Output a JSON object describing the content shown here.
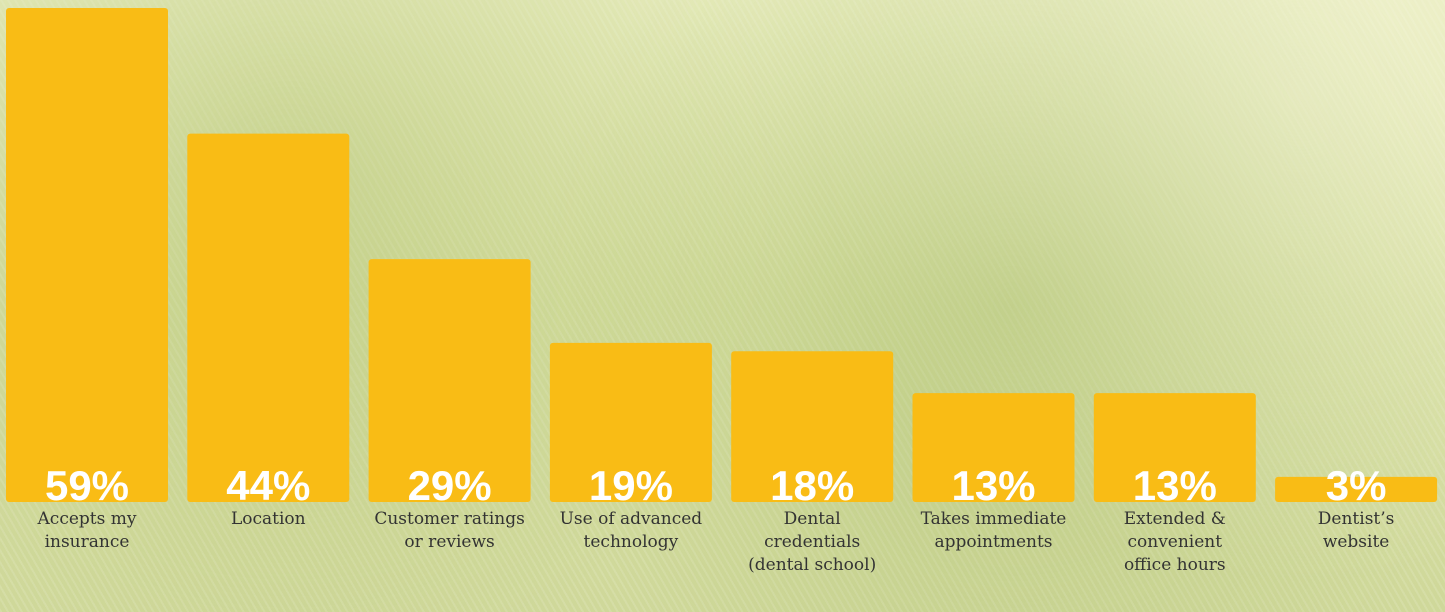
{
  "chart_data": {
    "type": "bar",
    "categories": [
      "Accepts my\ninsurance",
      "Location",
      "Customer ratings\nor reviews",
      "Use of advanced\ntechnology",
      "Dental\ncredentials\n(dental school)",
      "Takes immediate\nappointments",
      "Extended &\nconvenient\noffice hours",
      "Dentist’s\nwebsite"
    ],
    "values": [
      59,
      44,
      29,
      19,
      18,
      13,
      13,
      3
    ],
    "value_labels": [
      "59%",
      "44%",
      "29%",
      "19%",
      "18%",
      "13%",
      "13%",
      "3%"
    ],
    "color": "#f9bc15"
  }
}
